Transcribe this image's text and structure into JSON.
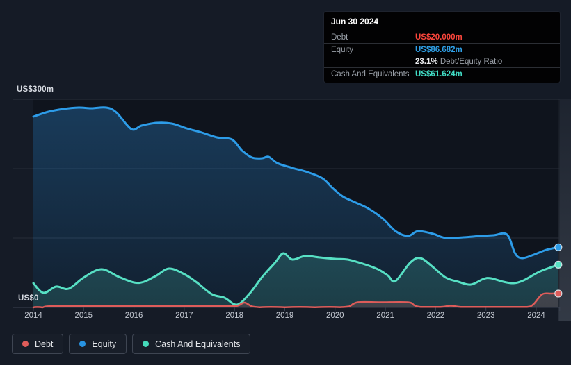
{
  "tooltip": {
    "date": "Jun 30 2024",
    "debt_label": "Debt",
    "debt_value": "US$20.000m",
    "equity_label": "Equity",
    "equity_value": "US$86.682m",
    "ratio_value": "23.1%",
    "ratio_label": "Debt/Equity Ratio",
    "cash_label": "Cash And Equivalents",
    "cash_value": "US$61.624m"
  },
  "axis": {
    "y_top_label": "US$300m",
    "y_zero_label": "US$0",
    "x_ticks": [
      "2014",
      "2015",
      "2016",
      "2017",
      "2018",
      "2019",
      "2020",
      "2021",
      "2022",
      "2023",
      "2024"
    ]
  },
  "legend": {
    "items": [
      {
        "label": "Debt",
        "color": "#e05d5a"
      },
      {
        "label": "Equity",
        "color": "#2793e2"
      },
      {
        "label": "Cash And Equivalents",
        "color": "#45dabb"
      }
    ]
  },
  "colors": {
    "page_bg": "#151b26",
    "plot_bg": "#0f141d",
    "gridline": "#272d38",
    "axis_line": "#3a4150",
    "debt": "#de5c5a",
    "equity": "#2d9ce8",
    "cash": "#57e0c4",
    "tooltip_debt": "#fa463c",
    "tooltip_equity": "#2f9fe6",
    "tooltip_cash": "#41dcc5"
  },
  "chart_data": {
    "type": "area",
    "title": "Debt to Equity history",
    "unit": "US$m",
    "ylim": [
      0,
      300
    ],
    "y_gridline_values": [
      0,
      100,
      200,
      300
    ],
    "x_range": [
      2014.0,
      2024.44
    ],
    "x_ticks": [
      2014,
      2015,
      2016,
      2017,
      2018,
      2019,
      2020,
      2021,
      2022,
      2023,
      2024
    ],
    "legend_position": "bottom-left",
    "series": [
      {
        "name": "Equity",
        "color": "#2d9ce8",
        "fill_top": "rgba(44,138,214,0.34)",
        "fill_bottom": "rgba(44,138,214,0.10)",
        "line_width": 3,
        "points": [
          [
            2014.0,
            275
          ],
          [
            2014.3,
            282
          ],
          [
            2014.6,
            286
          ],
          [
            2014.9,
            288
          ],
          [
            2015.15,
            287
          ],
          [
            2015.45,
            288
          ],
          [
            2015.65,
            281
          ],
          [
            2015.95,
            257
          ],
          [
            2016.15,
            262
          ],
          [
            2016.45,
            266
          ],
          [
            2016.75,
            265
          ],
          [
            2017.05,
            258
          ],
          [
            2017.35,
            252
          ],
          [
            2017.65,
            245
          ],
          [
            2017.95,
            242
          ],
          [
            2018.15,
            226
          ],
          [
            2018.35,
            216
          ],
          [
            2018.55,
            215
          ],
          [
            2018.68,
            217
          ],
          [
            2018.85,
            208
          ],
          [
            2019.15,
            201
          ],
          [
            2019.45,
            195
          ],
          [
            2019.75,
            186
          ],
          [
            2019.95,
            172
          ],
          [
            2020.15,
            160
          ],
          [
            2020.35,
            153
          ],
          [
            2020.65,
            143
          ],
          [
            2020.95,
            128
          ],
          [
            2021.2,
            110
          ],
          [
            2021.45,
            103
          ],
          [
            2021.65,
            110
          ],
          [
            2021.95,
            106
          ],
          [
            2022.2,
            100
          ],
          [
            2022.55,
            101
          ],
          [
            2022.9,
            103
          ],
          [
            2023.15,
            104
          ],
          [
            2023.42,
            105
          ],
          [
            2023.58,
            78
          ],
          [
            2023.72,
            71
          ],
          [
            2023.95,
            76
          ],
          [
            2024.2,
            83
          ],
          [
            2024.44,
            86.7
          ]
        ]
      },
      {
        "name": "Cash And Equivalents",
        "color": "#57e0c4",
        "fill_top": "rgba(86,224,197,0.27)",
        "fill_bottom": "rgba(86,224,197,0.15)",
        "line_width": 3,
        "points": [
          [
            2014.0,
            35
          ],
          [
            2014.2,
            21
          ],
          [
            2014.45,
            30
          ],
          [
            2014.7,
            27
          ],
          [
            2015.0,
            43
          ],
          [
            2015.35,
            55
          ],
          [
            2015.7,
            44
          ],
          [
            2016.0,
            36
          ],
          [
            2016.2,
            37
          ],
          [
            2016.45,
            46
          ],
          [
            2016.7,
            56
          ],
          [
            2017.0,
            48
          ],
          [
            2017.25,
            36
          ],
          [
            2017.55,
            19
          ],
          [
            2017.8,
            14
          ],
          [
            2018.05,
            4
          ],
          [
            2018.3,
            20
          ],
          [
            2018.55,
            44
          ],
          [
            2018.8,
            64
          ],
          [
            2018.97,
            78
          ],
          [
            2019.15,
            69
          ],
          [
            2019.4,
            74
          ],
          [
            2019.7,
            72
          ],
          [
            2020.0,
            70
          ],
          [
            2020.25,
            69
          ],
          [
            2020.55,
            63
          ],
          [
            2020.85,
            55
          ],
          [
            2021.05,
            46
          ],
          [
            2021.2,
            38
          ],
          [
            2021.5,
            65
          ],
          [
            2021.7,
            71
          ],
          [
            2021.95,
            58
          ],
          [
            2022.2,
            43
          ],
          [
            2022.45,
            37
          ],
          [
            2022.7,
            33
          ],
          [
            2022.95,
            41
          ],
          [
            2023.1,
            42
          ],
          [
            2023.35,
            37
          ],
          [
            2023.55,
            35
          ],
          [
            2023.75,
            39
          ],
          [
            2024.05,
            51
          ],
          [
            2024.3,
            58
          ],
          [
            2024.44,
            61.6
          ]
        ]
      },
      {
        "name": "Debt",
        "color": "#de5c5a",
        "fill_top": "rgba(220,90,90,0.30)",
        "fill_bottom": "rgba(220,90,90,0.18)",
        "line_width": 2.5,
        "points": [
          [
            2014.0,
            0
          ],
          [
            2014.18,
            0
          ],
          [
            2014.32,
            1.8
          ],
          [
            2015.0,
            1.8
          ],
          [
            2016.0,
            1.8
          ],
          [
            2017.0,
            1.8
          ],
          [
            2017.92,
            1.8
          ],
          [
            2018.08,
            3
          ],
          [
            2018.2,
            7
          ],
          [
            2018.35,
            1.5
          ],
          [
            2018.5,
            0.3
          ],
          [
            2019.0,
            0.3
          ],
          [
            2019.6,
            0.3
          ],
          [
            2020.1,
            0.4
          ],
          [
            2020.28,
            1.5
          ],
          [
            2020.45,
            7.5
          ],
          [
            2020.9,
            7.5
          ],
          [
            2021.45,
            7.5
          ],
          [
            2021.58,
            3
          ],
          [
            2021.7,
            0.8
          ],
          [
            2022.1,
            0.8
          ],
          [
            2022.3,
            2.5
          ],
          [
            2022.5,
            0.8
          ],
          [
            2022.9,
            0.8
          ],
          [
            2023.4,
            0.8
          ],
          [
            2023.82,
            0.8
          ],
          [
            2023.95,
            5
          ],
          [
            2024.12,
            19
          ],
          [
            2024.3,
            20
          ],
          [
            2024.44,
            20
          ]
        ]
      }
    ]
  }
}
